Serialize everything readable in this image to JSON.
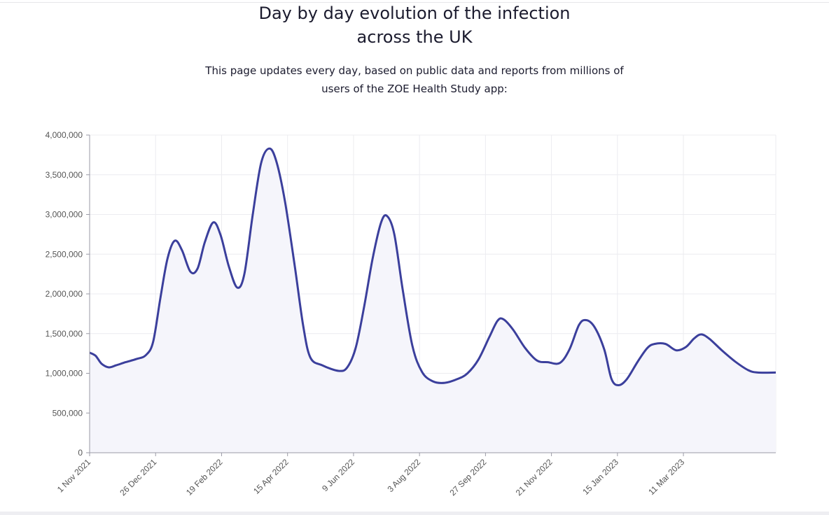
{
  "page": {
    "title": "Day by day evolution of the infection\nacross the UK",
    "subtitle": "This page updates every day, based on public data and reports from millions of users of the ZOE Health Study app:"
  },
  "chart_data": {
    "type": "area",
    "title": "",
    "xlabel": "",
    "ylabel": "",
    "ylim": [
      0,
      4000000
    ],
    "y_ticks": [
      0,
      500000,
      1000000,
      1500000,
      2000000,
      2500000,
      3000000,
      3500000,
      4000000
    ],
    "y_tick_labels": [
      "0",
      "500,000",
      "1,000,000",
      "1,500,000",
      "2,000,000",
      "2,500,000",
      "3,000,000",
      "3,500,000",
      "4,000,000"
    ],
    "x_tick_labels": [
      "1 Nov 2021",
      "26 Dec 2021",
      "19 Feb 2022",
      "15 Apr 2022",
      "9 Jun 2022",
      "3 Aug 2022",
      "27 Sep 2022",
      "21 Nov 2022",
      "15 Jan 2023",
      "11 Mar 2023"
    ],
    "x_range": [
      "2021-11-01",
      "2023-05-27"
    ],
    "grid": true,
    "legend": "none",
    "colors": {
      "line": "#3b3f9c",
      "fill": "#f5f5fb",
      "grid": "#ececf0",
      "axis": "#9a9aa6"
    },
    "series": [
      {
        "points": [
          [
            "2021-11-01",
            1260000
          ],
          [
            "2021-11-06",
            1220000
          ],
          [
            "2021-11-11",
            1120000
          ],
          [
            "2021-11-17",
            1075000
          ],
          [
            "2021-11-23",
            1100000
          ],
          [
            "2021-12-01",
            1140000
          ],
          [
            "2021-12-10",
            1180000
          ],
          [
            "2021-12-18",
            1230000
          ],
          [
            "2021-12-24",
            1400000
          ],
          [
            "2021-12-30",
            1950000
          ],
          [
            "2022-01-05",
            2450000
          ],
          [
            "2022-01-11",
            2670000
          ],
          [
            "2022-01-17",
            2550000
          ],
          [
            "2022-01-24",
            2280000
          ],
          [
            "2022-01-30",
            2320000
          ],
          [
            "2022-02-05",
            2650000
          ],
          [
            "2022-02-12",
            2900000
          ],
          [
            "2022-02-18",
            2750000
          ],
          [
            "2022-02-25",
            2350000
          ],
          [
            "2022-03-04",
            2080000
          ],
          [
            "2022-03-10",
            2250000
          ],
          [
            "2022-03-17",
            3000000
          ],
          [
            "2022-03-24",
            3650000
          ],
          [
            "2022-03-31",
            3830000
          ],
          [
            "2022-04-06",
            3650000
          ],
          [
            "2022-04-13",
            3150000
          ],
          [
            "2022-04-21",
            2350000
          ],
          [
            "2022-04-28",
            1600000
          ],
          [
            "2022-05-04",
            1200000
          ],
          [
            "2022-05-14",
            1100000
          ],
          [
            "2022-05-28",
            1030000
          ],
          [
            "2022-06-04",
            1080000
          ],
          [
            "2022-06-11",
            1330000
          ],
          [
            "2022-06-18",
            1850000
          ],
          [
            "2022-06-25",
            2450000
          ],
          [
            "2022-07-02",
            2900000
          ],
          [
            "2022-07-07",
            2980000
          ],
          [
            "2022-07-13",
            2750000
          ],
          [
            "2022-07-20",
            2050000
          ],
          [
            "2022-07-28",
            1350000
          ],
          [
            "2022-08-05",
            1020000
          ],
          [
            "2022-08-14",
            900000
          ],
          [
            "2022-08-24",
            880000
          ],
          [
            "2022-09-04",
            930000
          ],
          [
            "2022-09-12",
            1000000
          ],
          [
            "2022-09-21",
            1170000
          ],
          [
            "2022-09-30",
            1450000
          ],
          [
            "2022-10-07",
            1660000
          ],
          [
            "2022-10-12",
            1680000
          ],
          [
            "2022-10-20",
            1550000
          ],
          [
            "2022-10-30",
            1320000
          ],
          [
            "2022-11-09",
            1160000
          ],
          [
            "2022-11-18",
            1140000
          ],
          [
            "2022-11-28",
            1130000
          ],
          [
            "2022-12-06",
            1300000
          ],
          [
            "2022-12-14",
            1610000
          ],
          [
            "2022-12-20",
            1670000
          ],
          [
            "2022-12-27",
            1580000
          ],
          [
            "2023-01-04",
            1300000
          ],
          [
            "2023-01-10",
            930000
          ],
          [
            "2023-01-16",
            850000
          ],
          [
            "2023-01-23",
            930000
          ],
          [
            "2023-02-01",
            1150000
          ],
          [
            "2023-02-09",
            1320000
          ],
          [
            "2023-02-15",
            1370000
          ],
          [
            "2023-02-24",
            1370000
          ],
          [
            "2023-03-05",
            1290000
          ],
          [
            "2023-03-13",
            1330000
          ],
          [
            "2023-03-20",
            1440000
          ],
          [
            "2023-03-26",
            1490000
          ],
          [
            "2023-04-02",
            1430000
          ],
          [
            "2023-04-12",
            1290000
          ],
          [
            "2023-04-23",
            1150000
          ],
          [
            "2023-05-04",
            1040000
          ],
          [
            "2023-05-12",
            1010000
          ],
          [
            "2023-05-27",
            1010000
          ]
        ]
      }
    ]
  }
}
